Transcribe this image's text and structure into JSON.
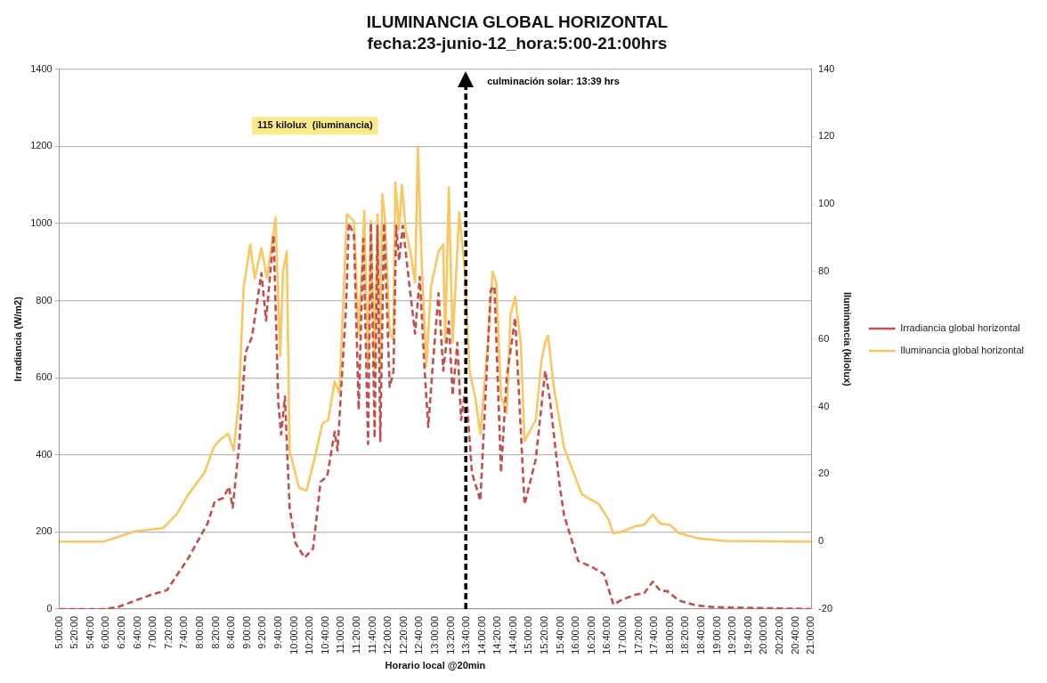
{
  "chart_data": {
    "type": "line",
    "title": "ILUMINANCIA GLOBAL HORIZONTAL",
    "subtitle": "fecha:23-junio-12_hora:5:00-21:00hrs",
    "xlabel": "Horario local @20min",
    "ylabel": "Irradiancia (W/m2)",
    "y2label": "Iluminancia (kilolux)",
    "xlim": [
      5,
      21
    ],
    "xticks": [
      {
        "value": 5,
        "label": "5:00:00"
      },
      {
        "value": 5.3333,
        "label": "5:20:00"
      },
      {
        "value": 5.6667,
        "label": "5:40:00"
      },
      {
        "value": 6,
        "label": "6:00:00"
      },
      {
        "value": 6.3333,
        "label": "6:20:00"
      },
      {
        "value": 6.6667,
        "label": "6:40:00"
      },
      {
        "value": 7,
        "label": "7:00:00"
      },
      {
        "value": 7.3333,
        "label": "7:20:00"
      },
      {
        "value": 7.6667,
        "label": "7:40:00"
      },
      {
        "value": 8,
        "label": "8:00:00"
      },
      {
        "value": 8.3333,
        "label": "8:20:00"
      },
      {
        "value": 8.6667,
        "label": "8:40:00"
      },
      {
        "value": 9,
        "label": "9:00:00"
      },
      {
        "value": 9.3333,
        "label": "9:20:00"
      },
      {
        "value": 9.6667,
        "label": "9:40:00"
      },
      {
        "value": 10,
        "label": "10:00:00"
      },
      {
        "value": 10.3333,
        "label": "10:20:00"
      },
      {
        "value": 10.6667,
        "label": "10:40:00"
      },
      {
        "value": 11,
        "label": "11:00:00"
      },
      {
        "value": 11.3333,
        "label": "11:20:00"
      },
      {
        "value": 11.6667,
        "label": "11:40:00"
      },
      {
        "value": 12,
        "label": "12:00:00"
      },
      {
        "value": 12.3333,
        "label": "12:20:00"
      },
      {
        "value": 12.6667,
        "label": "12:40:00"
      },
      {
        "value": 13,
        "label": "13:00:00"
      },
      {
        "value": 13.3333,
        "label": "13:20:00"
      },
      {
        "value": 13.6667,
        "label": "13:40:00"
      },
      {
        "value": 14,
        "label": "14:00:00"
      },
      {
        "value": 14.3333,
        "label": "14:20:00"
      },
      {
        "value": 14.6667,
        "label": "14:40:00"
      },
      {
        "value": 15,
        "label": "15:00:00"
      },
      {
        "value": 15.3333,
        "label": "15:20:00"
      },
      {
        "value": 15.6667,
        "label": "15:40:00"
      },
      {
        "value": 16,
        "label": "16:00:00"
      },
      {
        "value": 16.3333,
        "label": "16:20:00"
      },
      {
        "value": 16.6667,
        "label": "16:40:00"
      },
      {
        "value": 17,
        "label": "17:00:00"
      },
      {
        "value": 17.3333,
        "label": "17:20:00"
      },
      {
        "value": 17.6667,
        "label": "17:40:00"
      },
      {
        "value": 18,
        "label": "18:00:00"
      },
      {
        "value": 18.3333,
        "label": "18:20:00"
      },
      {
        "value": 18.6667,
        "label": "18:40:00"
      },
      {
        "value": 19,
        "label": "19:00:00"
      },
      {
        "value": 19.3333,
        "label": "19:20:00"
      },
      {
        "value": 19.6667,
        "label": "19:40:00"
      },
      {
        "value": 20,
        "label": "20:00:00"
      },
      {
        "value": 20.3333,
        "label": "20:20:00"
      },
      {
        "value": 20.6667,
        "label": "20:40:00"
      },
      {
        "value": 21,
        "label": "21:00:00"
      }
    ],
    "ylim": [
      0,
      1400
    ],
    "yticks": [
      0,
      200,
      400,
      600,
      800,
      1000,
      1200,
      1400
    ],
    "y2lim": [
      -20,
      140
    ],
    "y2ticks": [
      -20,
      0,
      20,
      40,
      60,
      80,
      100,
      120,
      140
    ],
    "grid": "y",
    "legend": "right",
    "series": [
      {
        "name": "Irradiancia global horizontal",
        "type": "line",
        "color": "#c0504d",
        "line_style": "dashed",
        "x": [
          5,
          5.94,
          6.24,
          6.95,
          7.29,
          7.75,
          8.15,
          8.31,
          8.49,
          8.61,
          8.69,
          8.82,
          8.96,
          9.1,
          9.3,
          9.4,
          9.56,
          9.66,
          9.72,
          9.8,
          9.9,
          10.02,
          10.22,
          10.4,
          10.56,
          10.7,
          10.86,
          10.92,
          11.1,
          11.16,
          11.27,
          11.37,
          11.47,
          11.57,
          11.63,
          11.71,
          11.77,
          11.83,
          11.91,
          12.03,
          12.11,
          12.17,
          12.23,
          12.31,
          12.43,
          12.57,
          12.67,
          12.77,
          12.85,
          12.95,
          13.07,
          13.17,
          13.29,
          13.37,
          13.47,
          13.55,
          13.65,
          13.78,
          13.96,
          14.18,
          14.26,
          14.4,
          14.52,
          14.7,
          14.9,
          15.14,
          15.34,
          15.44,
          15.64,
          15.74,
          16.04,
          16.35,
          16.59,
          16.79,
          16.99,
          17.25,
          17.45,
          17.63,
          17.79,
          17.93,
          18.19,
          18.53,
          18.94,
          21
        ],
        "values": [
          0,
          0,
          5,
          37,
          49,
          133,
          221,
          280,
          288,
          317,
          263,
          418,
          664,
          706,
          871,
          748,
          970,
          534,
          453,
          551,
          263,
          172,
          133,
          157,
          330,
          344,
          460,
          411,
          780,
          1001,
          970,
          517,
          960,
          428,
          1001,
          443,
          994,
          435,
          1001,
          576,
          615,
          994,
          903,
          994,
          861,
          714,
          861,
          627,
          472,
          637,
          819,
          618,
          746,
          554,
          691,
          490,
          581,
          354,
          281,
          827,
          837,
          354,
          600,
          755,
          271,
          389,
          618,
          544,
          327,
          244,
          125,
          108,
          91,
          12,
          25,
          37,
          42,
          71,
          47,
          47,
          22,
          10,
          5,
          0
        ]
      },
      {
        "name": "Iluminancia global horizontal",
        "type": "line",
        "axis": "y2",
        "color": "#f9c662",
        "line_style": "solid",
        "x": [
          5,
          5.94,
          6.61,
          7.21,
          7.49,
          7.75,
          8.09,
          8.29,
          8.41,
          8.59,
          8.71,
          8.82,
          8.92,
          9.06,
          9.16,
          9.3,
          9.42,
          9.6,
          9.7,
          9.76,
          9.84,
          9.9,
          10.1,
          10.26,
          10.42,
          10.6,
          10.72,
          10.86,
          10.96,
          11.12,
          11.27,
          11.37,
          11.49,
          11.57,
          11.63,
          11.71,
          11.77,
          11.83,
          11.87,
          11.93,
          12.03,
          12.11,
          12.15,
          12.23,
          12.29,
          12.37,
          12.47,
          12.57,
          12.63,
          12.71,
          12.81,
          12.91,
          13.07,
          13.17,
          13.21,
          13.29,
          13.37,
          13.51,
          13.63,
          13.73,
          13.86,
          13.96,
          14.12,
          14.22,
          14.3,
          14.4,
          14.52,
          14.6,
          14.7,
          14.82,
          14.9,
          15.14,
          15.26,
          15.34,
          15.4,
          15.52,
          15.74,
          16.12,
          16.49,
          16.69,
          16.79,
          16.99,
          17.25,
          17.45,
          17.63,
          17.79,
          17.99,
          18.19,
          18.59,
          19.14,
          21
        ],
        "values": [
          0,
          0,
          3,
          4,
          8,
          14,
          20.5,
          28,
          30,
          32,
          27,
          42,
          75,
          88,
          78,
          87,
          78,
          96,
          55,
          80,
          86,
          27,
          16,
          15,
          24,
          35,
          36,
          47.5,
          44,
          97,
          95,
          61,
          98,
          51,
          95,
          51,
          97,
          51,
          103,
          96,
          61.5,
          60,
          106.5,
          92.5,
          105.7,
          92.5,
          86,
          76.7,
          117,
          83,
          52,
          75.6,
          86,
          88,
          59,
          104.9,
          59,
          97.5,
          80,
          50.6,
          42,
          31.7,
          59,
          80,
          76.7,
          43,
          38,
          67,
          72.5,
          59,
          29.8,
          36,
          53.7,
          59,
          61,
          46,
          27.8,
          14,
          11,
          6.4,
          2.5,
          3,
          4.5,
          5,
          8,
          5.3,
          5,
          2.5,
          1,
          0.2,
          0
        ]
      }
    ],
    "ref_lines": [
      {
        "axis": "x",
        "value": 13.65,
        "color": "#000000",
        "line_style": "dashed"
      }
    ],
    "annotations": [
      "115 kilolux  (iluminancia)",
      {
        "text": "culminación solar: 13:39 hrs",
        "x": 13.65
      }
    ]
  }
}
